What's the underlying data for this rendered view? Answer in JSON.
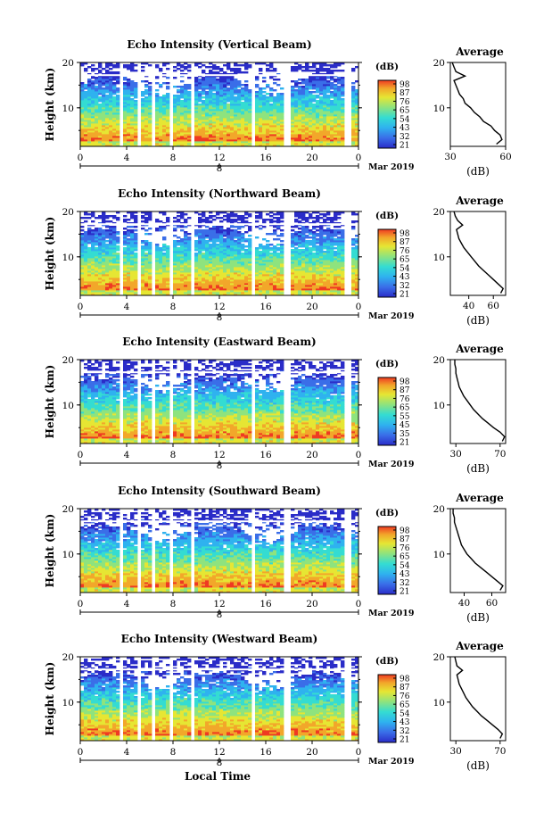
{
  "panels": [
    {
      "title": "Echo Intensity (Vertical Beam)",
      "cb_ticks": [
        "98",
        "87",
        "76",
        "65",
        "54",
        "43",
        "32",
        "21"
      ],
      "avg_ticks": [
        "30",
        "60"
      ],
      "avg_range": [
        30,
        60
      ]
    },
    {
      "title": "Echo Intensity (Northward Beam)",
      "cb_ticks": [
        "98",
        "87",
        "76",
        "65",
        "54",
        "43",
        "32",
        "21"
      ],
      "avg_ticks": [
        "40",
        "60"
      ],
      "avg_range": [
        25,
        70
      ]
    },
    {
      "title": "Echo Intensity (Eastward Beam)",
      "cb_ticks": [
        "98",
        "87",
        "76",
        "65",
        "55",
        "45",
        "35",
        "21"
      ],
      "avg_ticks": [
        "30",
        "70"
      ],
      "avg_range": [
        25,
        75
      ]
    },
    {
      "title": "Echo Intensity (Southward Beam)",
      "cb_ticks": [
        "98",
        "87",
        "76",
        "65",
        "54",
        "43",
        "32",
        "21"
      ],
      "avg_ticks": [
        "40",
        "60"
      ],
      "avg_range": [
        30,
        70
      ]
    },
    {
      "title": "Echo Intensity (Westward Beam)",
      "cb_ticks": [
        "98",
        "87",
        "76",
        "65",
        "54",
        "43",
        "32",
        "21"
      ],
      "avg_ticks": [
        "30",
        "70"
      ],
      "avg_range": [
        25,
        75
      ]
    }
  ],
  "ylabel": "Height (km)",
  "height_ticks": [
    "20",
    "10"
  ],
  "time_ticks": [
    "0",
    "4",
    "8",
    "12",
    "16",
    "20",
    "0"
  ],
  "date_marker": "8",
  "date_label": "Mar 2019",
  "cb_unit": "(dB)",
  "avg_title": "Average",
  "avg_xlabel": "(dB)",
  "xlabel": "Local Time",
  "colors": {
    "colormap": [
      "#2a2cc8",
      "#3a6ee8",
      "#2fb2ef",
      "#34dcd2",
      "#8ee37e",
      "#e6e633",
      "#f2a72a",
      "#ef3a22"
    ]
  },
  "chart_data": [
    {
      "type": "heatmap",
      "title": "Echo Intensity (Vertical Beam)",
      "xlabel": "",
      "ylabel": "Height (km)",
      "xlim": [
        0,
        24
      ],
      "ylim": [
        1.5,
        20
      ],
      "colorbar_range_db": [
        21,
        98
      ],
      "data_gaps_hours": [
        [
          3.5,
          3.8
        ],
        [
          5.0,
          5.3
        ],
        [
          6.2,
          6.5
        ],
        [
          7.6,
          8.1
        ],
        [
          9.4,
          9.7
        ],
        [
          14.8,
          15.2
        ],
        [
          17.6,
          18.1
        ],
        [
          22.9,
          23.3
        ]
      ],
      "average_profile": {
        "xlabel": "(dB)",
        "xlim": [
          30,
          60
        ],
        "height_km": [
          2,
          3,
          4,
          5,
          6,
          7,
          8,
          9,
          10,
          11,
          12,
          13,
          14,
          15,
          16,
          17,
          18,
          19,
          20
        ],
        "db": [
          55,
          58,
          57,
          54,
          52,
          48,
          46,
          43,
          41,
          38,
          37,
          35,
          34,
          33,
          32,
          38,
          33,
          32,
          31
        ]
      }
    },
    {
      "type": "heatmap",
      "title": "Echo Intensity (Northward Beam)",
      "xlabel": "",
      "ylabel": "Height (km)",
      "xlim": [
        0,
        24
      ],
      "ylim": [
        1.5,
        20
      ],
      "colorbar_range_db": [
        21,
        98
      ],
      "data_gaps_hours": [
        [
          3.5,
          3.8
        ],
        [
          5.0,
          5.3
        ],
        [
          6.2,
          6.5
        ],
        [
          7.6,
          8.1
        ],
        [
          9.4,
          9.7
        ],
        [
          14.8,
          15.2
        ],
        [
          17.6,
          18.1
        ],
        [
          22.9,
          23.3
        ]
      ],
      "average_profile": {
        "xlabel": "(dB)",
        "xlim": [
          25,
          70
        ],
        "height_km": [
          2,
          3,
          4,
          5,
          6,
          7,
          8,
          9,
          10,
          11,
          12,
          13,
          14,
          15,
          16,
          17,
          18,
          19,
          20
        ],
        "db": [
          66,
          68,
          64,
          60,
          56,
          52,
          48,
          45,
          42,
          39,
          36,
          34,
          32,
          31,
          30,
          35,
          31,
          29,
          28
        ]
      }
    },
    {
      "type": "heatmap",
      "title": "Echo Intensity (Eastward Beam)",
      "xlabel": "",
      "ylabel": "Height (km)",
      "xlim": [
        0,
        24
      ],
      "ylim": [
        1.5,
        20
      ],
      "colorbar_range_db": [
        21,
        98
      ],
      "data_gaps_hours": [
        [
          3.5,
          3.8
        ],
        [
          5.0,
          5.3
        ],
        [
          6.2,
          6.5
        ],
        [
          7.6,
          8.1
        ],
        [
          9.4,
          9.7
        ],
        [
          14.8,
          15.2
        ],
        [
          17.6,
          18.1
        ],
        [
          22.9,
          23.3
        ]
      ],
      "average_profile": {
        "xlabel": "(dB)",
        "xlim": [
          25,
          75
        ],
        "height_km": [
          2,
          3,
          4,
          5,
          6,
          7,
          8,
          9,
          10,
          11,
          12,
          13,
          14,
          15,
          16,
          17,
          18,
          19,
          20
        ],
        "db": [
          72,
          74,
          70,
          64,
          59,
          54,
          50,
          46,
          43,
          40,
          37,
          35,
          33,
          32,
          31,
          30,
          30,
          29,
          29
        ]
      }
    },
    {
      "type": "heatmap",
      "title": "Echo Intensity (Southward Beam)",
      "xlabel": "",
      "ylabel": "Height (km)",
      "xlim": [
        0,
        24
      ],
      "ylim": [
        1.5,
        20
      ],
      "colorbar_range_db": [
        21,
        98
      ],
      "data_gaps_hours": [
        [
          3.5,
          3.8
        ],
        [
          5.0,
          5.3
        ],
        [
          6.2,
          6.5
        ],
        [
          7.6,
          8.1
        ],
        [
          9.4,
          9.7
        ],
        [
          14.8,
          15.2
        ],
        [
          17.6,
          18.1
        ],
        [
          22.9,
          23.3
        ]
      ],
      "average_profile": {
        "xlabel": "(dB)",
        "xlim": [
          30,
          70
        ],
        "height_km": [
          2,
          3,
          4,
          5,
          6,
          7,
          8,
          9,
          10,
          11,
          12,
          13,
          14,
          15,
          16,
          17,
          18,
          19,
          20
        ],
        "db": [
          66,
          68,
          64,
          60,
          56,
          52,
          48,
          45,
          42,
          40,
          38,
          37,
          36,
          35,
          34,
          33,
          33,
          32,
          32
        ]
      }
    },
    {
      "type": "heatmap",
      "title": "Echo Intensity (Westward Beam)",
      "xlabel": "Local Time",
      "ylabel": "Height (km)",
      "xlim": [
        0,
        24
      ],
      "ylim": [
        1.5,
        20
      ],
      "colorbar_range_db": [
        21,
        98
      ],
      "data_gaps_hours": [
        [
          3.5,
          3.8
        ],
        [
          5.0,
          5.3
        ],
        [
          6.2,
          6.5
        ],
        [
          7.6,
          8.1
        ],
        [
          9.4,
          9.7
        ],
        [
          14.8,
          15.2
        ],
        [
          17.6,
          18.1
        ],
        [
          22.9,
          23.3
        ]
      ],
      "average_profile": {
        "xlabel": "(dB)",
        "xlim": [
          25,
          75
        ],
        "height_km": [
          2,
          3,
          4,
          5,
          6,
          7,
          8,
          9,
          10,
          11,
          12,
          13,
          14,
          15,
          16,
          17,
          18,
          19,
          20
        ],
        "db": [
          70,
          72,
          68,
          63,
          58,
          53,
          49,
          45,
          42,
          39,
          37,
          35,
          33,
          32,
          31,
          36,
          31,
          30,
          29
        ]
      }
    }
  ]
}
